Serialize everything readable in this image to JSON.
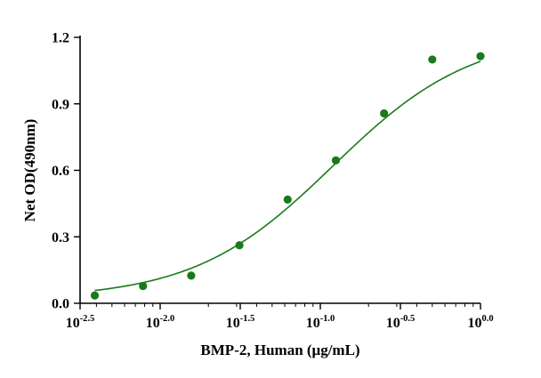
{
  "chart_data": {
    "type": "scatter",
    "xlabel": "BMP-2, Human (μg/mL)",
    "ylabel": "Net OD(490nm)",
    "x_scale": "log10",
    "xlim": [
      0.003162,
      1.0
    ],
    "ylim": [
      0,
      1.2
    ],
    "x_ticks": [
      {
        "base": "10",
        "exp": "-2.5"
      },
      {
        "base": "10",
        "exp": "-2.0"
      },
      {
        "base": "10",
        "exp": "-1.5"
      },
      {
        "base": "10",
        "exp": "-1.0"
      },
      {
        "base": "10",
        "exp": "-0.5"
      },
      {
        "base": "10",
        "exp": "0.0"
      }
    ],
    "y_ticks": [
      "0.0",
      "0.3",
      "0.6",
      "0.9",
      "1.2"
    ],
    "grid": false,
    "series": [
      {
        "color": "#1a7a1a",
        "x": [
          0.003906,
          0.007813,
          0.015625,
          0.03125,
          0.0625,
          0.125,
          0.25,
          0.5,
          1.0
        ],
        "y": [
          0.035,
          0.078,
          0.125,
          0.262,
          0.468,
          0.645,
          0.857,
          1.1,
          1.115
        ]
      }
    ],
    "fit_curve": {
      "model": "4PL",
      "color": "#1a7a1a",
      "bottom": 0.02,
      "top": 1.22,
      "ec50": 0.12,
      "hill": 1.0
    }
  }
}
